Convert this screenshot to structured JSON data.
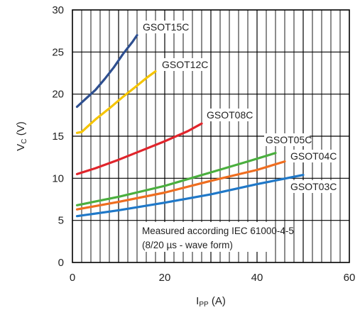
{
  "chart_data": {
    "type": "line",
    "xlabel": {
      "main": "I",
      "sub": "PP",
      "unit": "(A)"
    },
    "ylabel": {
      "main": "V",
      "sub": "C",
      "unit": "(V)"
    },
    "xlim": [
      0,
      60
    ],
    "ylim": [
      0,
      30
    ],
    "xticks": [
      0,
      20,
      40,
      60
    ],
    "yticks": [
      0,
      5,
      10,
      15,
      20,
      25,
      30
    ],
    "grid": true,
    "annotation": [
      "Measured according IEC 61000-4-5",
      "(8/20 µs - wave form)"
    ],
    "series": [
      {
        "name": "GSOT15C",
        "color": "#2e4f8f",
        "points": [
          [
            1,
            18.5
          ],
          [
            3,
            19.5
          ],
          [
            5,
            20.5
          ],
          [
            7,
            21.8
          ],
          [
            9,
            23.2
          ],
          [
            11,
            24.8
          ],
          [
            13,
            26.2
          ],
          [
            14,
            27.0
          ]
        ]
      },
      {
        "name": "GSOT12C",
        "color": "#f5c400",
        "points": [
          [
            1,
            15.4
          ],
          [
            2,
            15.5
          ],
          [
            3,
            16.0
          ],
          [
            5,
            17.0
          ],
          [
            8,
            18.3
          ],
          [
            11,
            19.7
          ],
          [
            14,
            21.0
          ],
          [
            16,
            21.9
          ],
          [
            18,
            22.7
          ]
        ]
      },
      {
        "name": "GSOT08C",
        "color": "#e0242b",
        "points": [
          [
            1,
            10.5
          ],
          [
            5,
            11.2
          ],
          [
            10,
            12.2
          ],
          [
            15,
            13.3
          ],
          [
            20,
            14.4
          ],
          [
            25,
            15.6
          ],
          [
            28,
            16.5
          ]
        ]
      },
      {
        "name": "GSOT05C",
        "color": "#4aaf3e",
        "points": [
          [
            1,
            6.8
          ],
          [
            10,
            7.8
          ],
          [
            20,
            9.1
          ],
          [
            30,
            10.7
          ],
          [
            38,
            12.0
          ],
          [
            44,
            13.0
          ]
        ]
      },
      {
        "name": "GSOT04C",
        "color": "#ef6d1f",
        "points": [
          [
            1,
            6.3
          ],
          [
            10,
            7.2
          ],
          [
            20,
            8.3
          ],
          [
            30,
            9.7
          ],
          [
            40,
            11.0
          ],
          [
            46,
            12.0
          ]
        ]
      },
      {
        "name": "GSOT03C",
        "color": "#1f78c8",
        "points": [
          [
            1,
            5.5
          ],
          [
            10,
            6.2
          ],
          [
            20,
            7.1
          ],
          [
            30,
            8.1
          ],
          [
            40,
            9.3
          ],
          [
            50,
            10.4
          ]
        ]
      }
    ],
    "series_labels": [
      {
        "text": "GSOT15C"
      },
      {
        "text": "GSOT12C"
      },
      {
        "text": "GSOT08C"
      },
      {
        "text": "GSOT05C"
      },
      {
        "text": "GSOT04C"
      },
      {
        "text": "GSOT03C"
      }
    ]
  }
}
